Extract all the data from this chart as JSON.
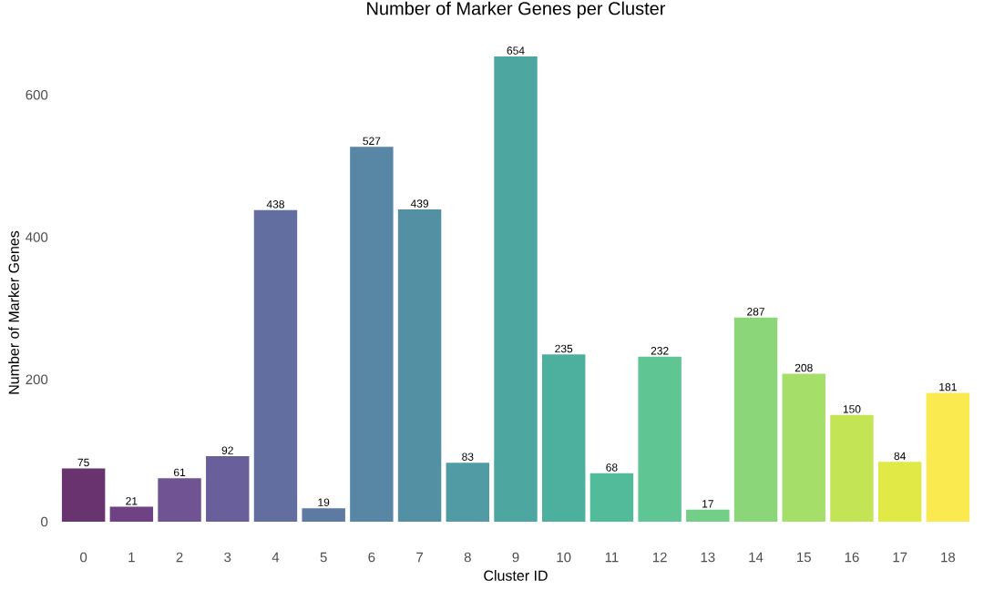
{
  "chart_data": {
    "type": "bar",
    "title": "Number of Marker Genes per Cluster",
    "xlabel": "Cluster ID",
    "ylabel": "Number of Marker Genes",
    "categories": [
      "0",
      "1",
      "2",
      "3",
      "4",
      "5",
      "6",
      "7",
      "8",
      "9",
      "10",
      "11",
      "12",
      "13",
      "14",
      "15",
      "16",
      "17",
      "18"
    ],
    "values": [
      75,
      21,
      61,
      92,
      438,
      19,
      527,
      439,
      83,
      654,
      235,
      68,
      232,
      17,
      287,
      208,
      150,
      84,
      181
    ],
    "colors": [
      "#69336f",
      "#6f4285",
      "#6f5393",
      "#69609b",
      "#636ea0",
      "#5c7aa2",
      "#5886a5",
      "#5490a4",
      "#519ba4",
      "#4ea6a1",
      "#4db09f",
      "#52bb9a",
      "#5ec593",
      "#72cf87",
      "#8bd679",
      "#a6de6a",
      "#c3e455",
      "#e0e946",
      "#fbe950"
    ],
    "ylim": [
      0,
      654
    ],
    "yticks": [
      0,
      200,
      400,
      600
    ],
    "data_labels": true
  }
}
